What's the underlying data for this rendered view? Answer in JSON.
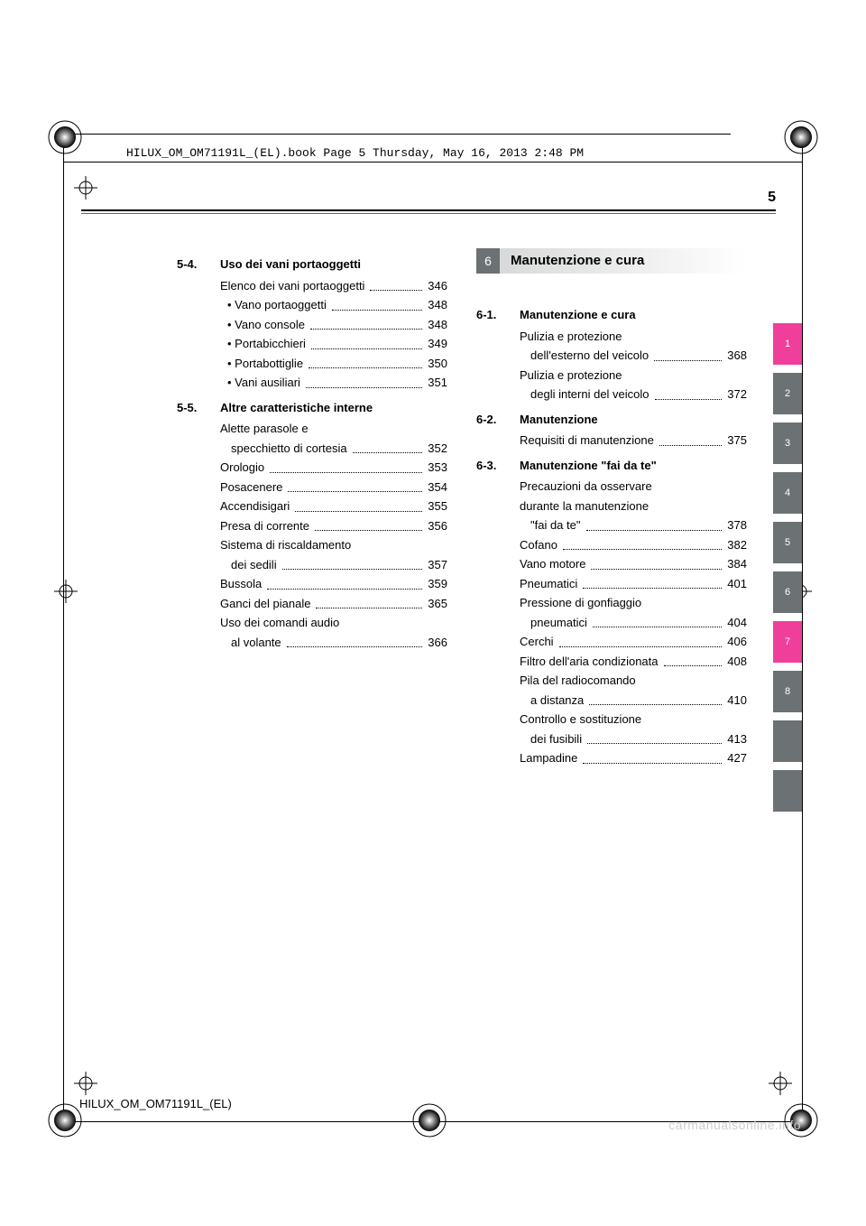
{
  "running_header": "HILUX_OM_OM71191L_(EL).book  Page 5  Thursday, May 16, 2013  2:48 PM",
  "page_number": "5",
  "footer": "HILUX_OM_OM71191L_(EL)",
  "watermark": "carmanualsonline.info",
  "colors": {
    "tab_gray": "#6c7273",
    "tab_magenta": "#ef3f9a",
    "chapter_numbox": "#6c7273",
    "chapter_bg_start": "#d8d9da",
    "chapter_bg_end": "#ffffff"
  },
  "side_tabs": [
    {
      "label": "1",
      "color": "#ef3f9a"
    },
    {
      "label": "2",
      "color": "#6c7273"
    },
    {
      "label": "3",
      "color": "#6c7273"
    },
    {
      "label": "4",
      "color": "#6c7273"
    },
    {
      "label": "5",
      "color": "#6c7273"
    },
    {
      "label": "6",
      "color": "#6c7273"
    },
    {
      "label": "7",
      "color": "#ef3f9a"
    },
    {
      "label": "8",
      "color": "#6c7273"
    },
    {
      "label": "",
      "color": "#6c7273"
    },
    {
      "label": "",
      "color": "#6c7273"
    }
  ],
  "left_column": {
    "sections": [
      {
        "num": "5-4.",
        "title": "Uso dei vani portaoggetti",
        "entries": [
          {
            "label": "Elenco dei vani portaoggetti",
            "page": "346",
            "sub": false
          },
          {
            "label": "Vano portaoggetti",
            "page": "348",
            "sub": true
          },
          {
            "label": "Vano console",
            "page": "348",
            "sub": true
          },
          {
            "label": "Portabicchieri",
            "page": "349",
            "sub": true
          },
          {
            "label": "Portabottiglie",
            "page": "350",
            "sub": true
          },
          {
            "label": "Vani ausiliari",
            "page": "351",
            "sub": true
          }
        ]
      },
      {
        "num": "5-5.",
        "title": "Altre caratteristiche interne",
        "entries": [
          {
            "label": "Alette parasole e\nspecchietto di cortesia",
            "page": "352",
            "sub": false
          },
          {
            "label": "Orologio",
            "page": "353",
            "sub": false
          },
          {
            "label": "Posacenere",
            "page": "354",
            "sub": false
          },
          {
            "label": "Accendisigari",
            "page": "355",
            "sub": false
          },
          {
            "label": "Presa di corrente",
            "page": "356",
            "sub": false
          },
          {
            "label": "Sistema di riscaldamento\ndei sedili",
            "page": "357",
            "sub": false
          },
          {
            "label": "Bussola",
            "page": "359",
            "sub": false
          },
          {
            "label": "Ganci del pianale",
            "page": "365",
            "sub": false
          },
          {
            "label": "Uso dei comandi audio\nal volante",
            "page": "366",
            "sub": false
          }
        ]
      }
    ]
  },
  "right_column": {
    "chapter": {
      "num": "6",
      "title": "Manutenzione e cura"
    },
    "sections": [
      {
        "num": "6-1.",
        "title": "Manutenzione e cura",
        "entries": [
          {
            "label": "Pulizia e protezione\ndell'esterno del veicolo",
            "page": "368",
            "sub": false
          },
          {
            "label": "Pulizia e protezione\ndegli interni del veicolo",
            "page": "372",
            "sub": false
          }
        ]
      },
      {
        "num": "6-2.",
        "title": "Manutenzione",
        "entries": [
          {
            "label": "Requisiti di manutenzione",
            "page": "375",
            "sub": false
          }
        ]
      },
      {
        "num": "6-3.",
        "title": "Manutenzione \"fai da te\"",
        "entries": [
          {
            "label": "Precauzioni da osservare\ndurante la manutenzione\n\"fai da te\"",
            "page": "378",
            "sub": false
          },
          {
            "label": "Cofano",
            "page": "382",
            "sub": false
          },
          {
            "label": "Vano motore",
            "page": "384",
            "sub": false
          },
          {
            "label": "Pneumatici",
            "page": "401",
            "sub": false
          },
          {
            "label": "Pressione di gonfiaggio\npneumatici",
            "page": "404",
            "sub": false
          },
          {
            "label": "Cerchi",
            "page": "406",
            "sub": false
          },
          {
            "label": "Filtro dell'aria condizionata",
            "page": "408",
            "sub": false
          },
          {
            "label": "Pila del radiocomando\na distanza",
            "page": "410",
            "sub": false
          },
          {
            "label": "Controllo e sostituzione\ndei fusibili",
            "page": "413",
            "sub": false
          },
          {
            "label": "Lampadine",
            "page": "427",
            "sub": false
          }
        ]
      }
    ]
  }
}
